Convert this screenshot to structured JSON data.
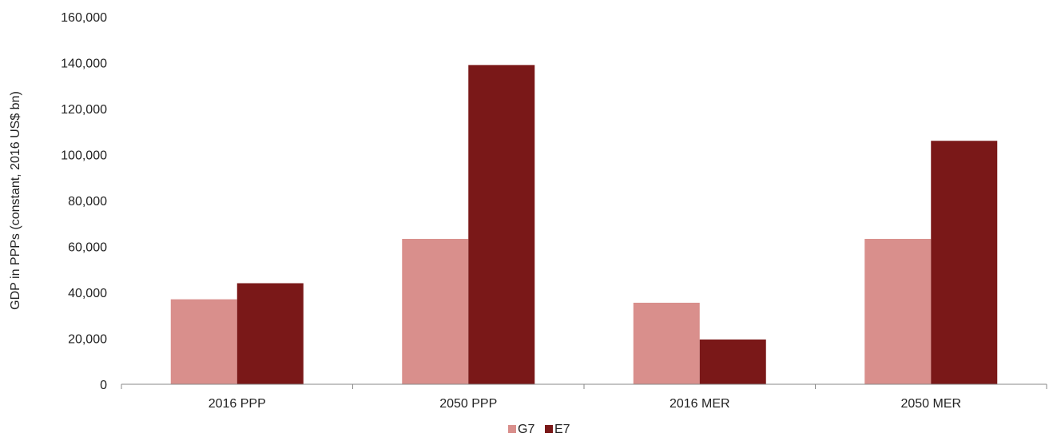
{
  "chart_data": {
    "type": "bar",
    "title": "",
    "xlabel": "",
    "ylabel": "GDP in PPPs (constant, 2016 US$ bn)",
    "categories": [
      "2016 PPP",
      "2050 PPP",
      "2016 MER",
      "2050 MER"
    ],
    "series": [
      {
        "name": "G7",
        "color": "#d98f8c",
        "values": [
          37000,
          63300,
          35500,
          63300
        ]
      },
      {
        "name": "E7",
        "color": "#7a1818",
        "values": [
          44000,
          139000,
          19500,
          106000
        ]
      }
    ],
    "ylim": [
      0,
      160000
    ],
    "yticks": [
      0,
      20000,
      40000,
      60000,
      80000,
      100000,
      120000,
      140000,
      160000
    ],
    "ytick_labels": [
      "0",
      "20,000",
      "40,000",
      "60,000",
      "80,000",
      "100,000",
      "120,000",
      "140,000",
      "160,000"
    ],
    "grid": false,
    "legend_position": "bottom-center"
  }
}
